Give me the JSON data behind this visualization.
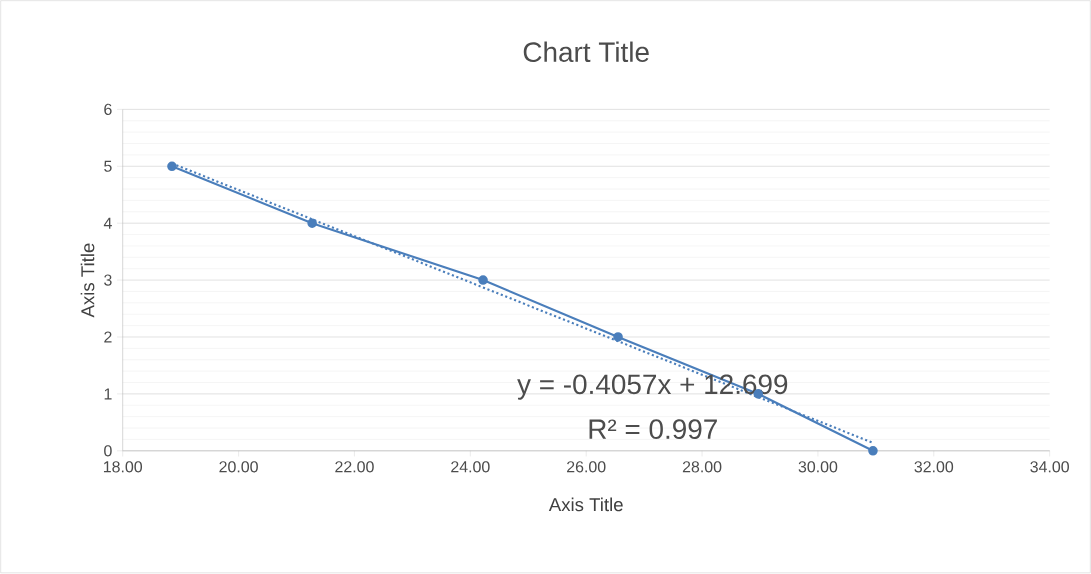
{
  "chart_data": {
    "type": "line",
    "title": "Chart Title",
    "xlabel": "Axis Title",
    "ylabel": "Axis Title",
    "xlim": [
      18,
      34
    ],
    "xticks": [
      {
        "value": 18,
        "label": "18.00"
      },
      {
        "value": 20,
        "label": "20.00"
      },
      {
        "value": 22,
        "label": "22.00"
      },
      {
        "value": 24,
        "label": "24.00"
      },
      {
        "value": 26,
        "label": "26.00"
      },
      {
        "value": 28,
        "label": "28.00"
      },
      {
        "value": 30,
        "label": "30.00"
      },
      {
        "value": 32,
        "label": "32.00"
      },
      {
        "value": 34,
        "label": "34.00"
      }
    ],
    "ylim": [
      0,
      6
    ],
    "yticks": [
      0,
      1,
      2,
      3,
      4,
      5,
      6
    ],
    "grid": "y",
    "series": [
      {
        "color": "#4a7ebb",
        "marker": "circle",
        "line_style": "solid",
        "x": [
          18.85,
          21.27,
          24.22,
          26.55,
          28.97,
          30.95
        ],
        "values": [
          5,
          4,
          3,
          2,
          1,
          0
        ]
      },
      {
        "color": "#4a7ebb",
        "marker": "none",
        "line_style": "dotted",
        "x": [
          18.85,
          30.95
        ],
        "values": [
          5.05,
          0.14
        ]
      }
    ],
    "annotations": [
      "y = -0.4057x + 12.699",
      "R² = 0.997"
    ]
  }
}
